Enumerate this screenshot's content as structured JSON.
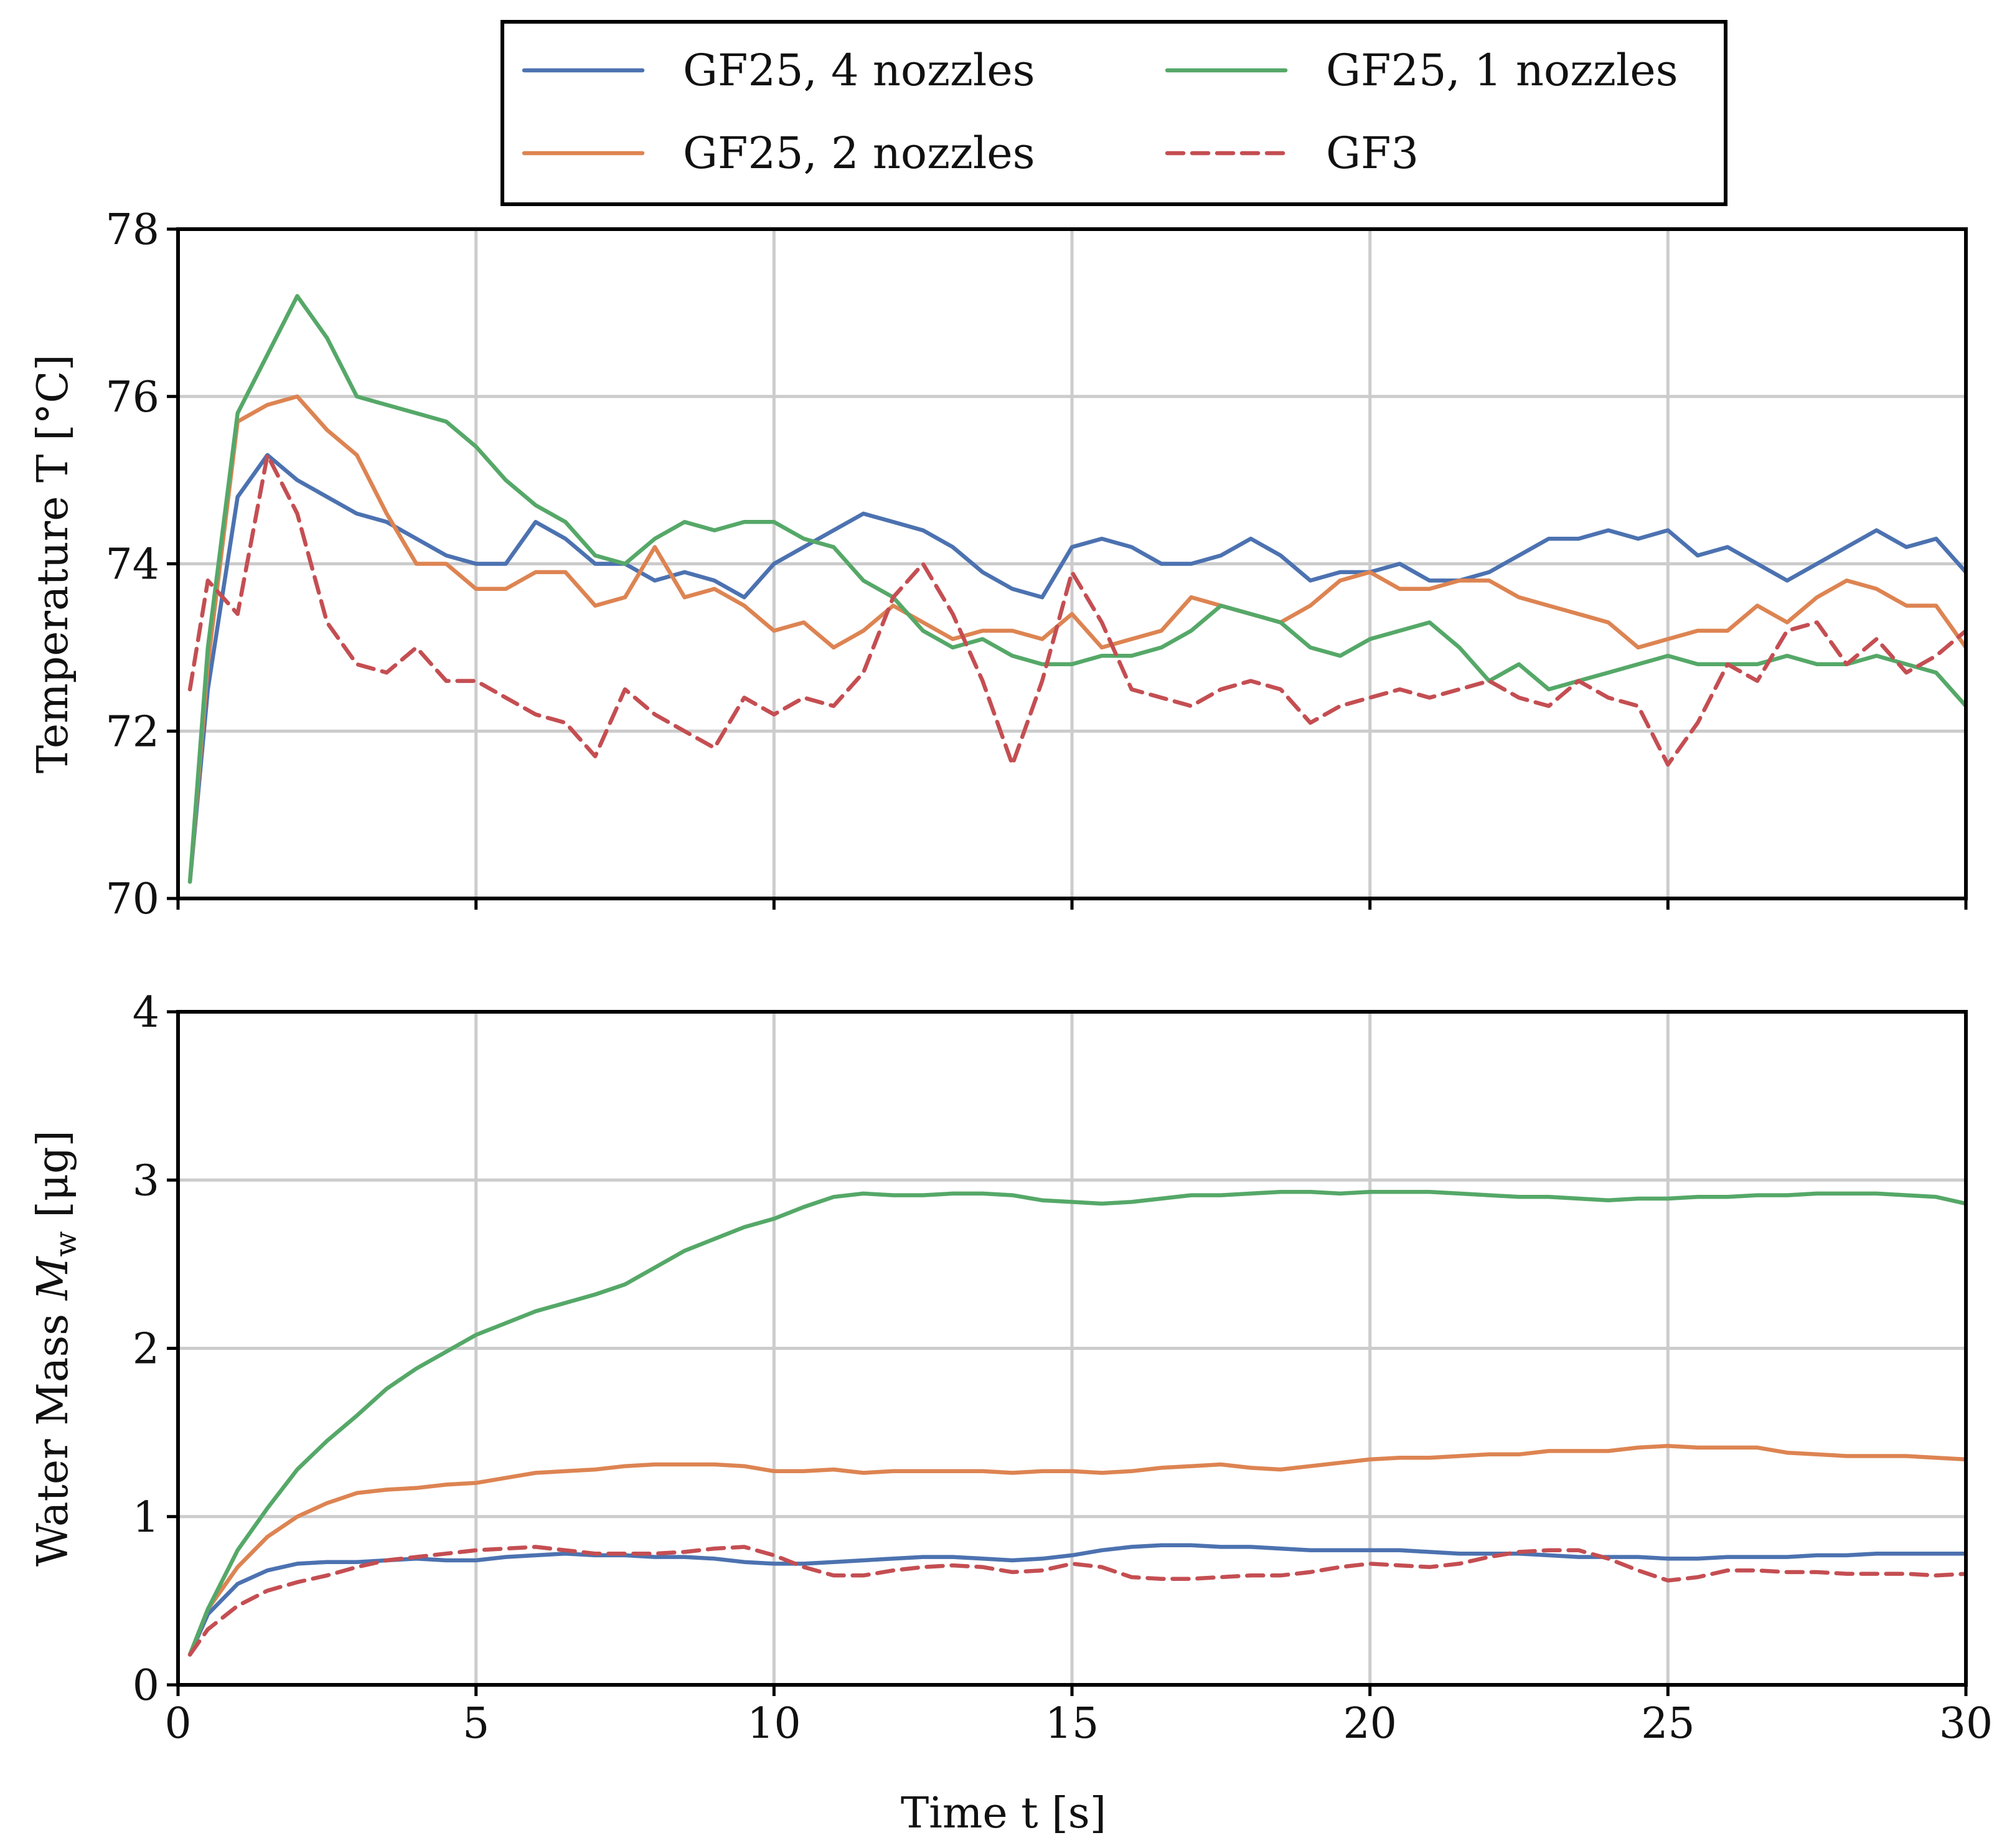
{
  "figure": {
    "xlabel": "Time t [s]"
  },
  "colors": {
    "GF25, 4 nozzles": "#4c72b0",
    "GF25, 2 nozzles": "#dd8452",
    "GF25, 1 nozzles": "#55a868",
    "GF3": "#c44e52"
  },
  "legend": [
    {
      "label": "GF25, 4 nozzles",
      "style": "solid"
    },
    {
      "label": "GF25, 1 nozzles",
      "style": "solid"
    },
    {
      "label": "GF25, 2 nozzles",
      "style": "solid"
    },
    {
      "label": "GF3",
      "style": "dashed"
    }
  ],
  "chart_data": [
    {
      "type": "line",
      "title": "",
      "xlabel": "",
      "ylabel": "Temperature T [°C]",
      "xlim": [
        0,
        30
      ],
      "ylim": [
        70,
        78
      ],
      "xticks": [
        0,
        5,
        10,
        15,
        20,
        25,
        30
      ],
      "xtick_labels_visible": false,
      "yticks": [
        70,
        72,
        74,
        76,
        78
      ],
      "grid": true,
      "x": [
        0.2,
        0.5,
        1,
        1.5,
        2,
        2.5,
        3,
        3.5,
        4,
        4.5,
        5,
        5.5,
        6,
        6.5,
        7,
        7.5,
        8,
        8.5,
        9,
        9.5,
        10,
        10.5,
        11,
        11.5,
        12,
        12.5,
        13,
        13.5,
        14,
        14.5,
        15,
        15.5,
        16,
        16.5,
        17,
        17.5,
        18,
        18.5,
        19,
        19.5,
        20,
        20.5,
        21,
        21.5,
        22,
        22.5,
        23,
        23.5,
        24,
        24.5,
        25,
        25.5,
        26,
        26.5,
        27,
        27.5,
        28,
        28.5,
        29,
        29.5,
        30
      ],
      "series": [
        {
          "name": "GF25, 4 nozzles",
          "style": "solid",
          "values": [
            70.2,
            72.5,
            74.8,
            75.3,
            75.0,
            74.8,
            74.6,
            74.5,
            74.3,
            74.1,
            74.0,
            74.0,
            74.5,
            74.3,
            74.0,
            74.0,
            73.8,
            73.9,
            73.8,
            73.6,
            74.0,
            74.2,
            74.4,
            74.6,
            74.5,
            74.4,
            74.2,
            73.9,
            73.7,
            73.6,
            74.2,
            74.3,
            74.2,
            74.0,
            74.0,
            74.1,
            74.3,
            74.1,
            73.8,
            73.9,
            73.9,
            74.0,
            73.8,
            73.8,
            73.9,
            74.1,
            74.3,
            74.3,
            74.4,
            74.3,
            74.4,
            74.1,
            74.2,
            74.0,
            73.8,
            74.0,
            74.2,
            74.4,
            74.2,
            74.3,
            73.9
          ]
        },
        {
          "name": "GF25, 2 nozzles",
          "style": "solid",
          "values": [
            70.2,
            72.8,
            75.7,
            75.9,
            76.0,
            75.6,
            75.3,
            74.6,
            74.0,
            74.0,
            73.7,
            73.7,
            73.9,
            73.9,
            73.5,
            73.6,
            74.2,
            73.6,
            73.7,
            73.5,
            73.2,
            73.3,
            73.0,
            73.2,
            73.5,
            73.3,
            73.1,
            73.2,
            73.2,
            73.1,
            73.4,
            73.0,
            73.1,
            73.2,
            73.6,
            73.5,
            73.4,
            73.3,
            73.5,
            73.8,
            73.9,
            73.7,
            73.7,
            73.8,
            73.8,
            73.6,
            73.5,
            73.4,
            73.3,
            73.0,
            73.1,
            73.2,
            73.2,
            73.5,
            73.3,
            73.6,
            73.8,
            73.7,
            73.5,
            73.5,
            73.0
          ]
        },
        {
          "name": "GF25, 1 nozzles",
          "style": "solid",
          "values": [
            70.2,
            73.0,
            75.8,
            76.5,
            77.2,
            76.7,
            76.0,
            75.9,
            75.8,
            75.7,
            75.4,
            75.0,
            74.7,
            74.5,
            74.1,
            74.0,
            74.3,
            74.5,
            74.4,
            74.5,
            74.5,
            74.3,
            74.2,
            73.8,
            73.6,
            73.2,
            73.0,
            73.1,
            72.9,
            72.8,
            72.8,
            72.9,
            72.9,
            73.0,
            73.2,
            73.5,
            73.4,
            73.3,
            73.0,
            72.9,
            73.1,
            73.2,
            73.3,
            73.0,
            72.6,
            72.8,
            72.5,
            72.6,
            72.7,
            72.8,
            72.9,
            72.8,
            72.8,
            72.8,
            72.9,
            72.8,
            72.8,
            72.9,
            72.8,
            72.7,
            72.3
          ]
        },
        {
          "name": "GF3",
          "style": "dashed",
          "values": [
            72.5,
            73.8,
            73.4,
            75.3,
            74.6,
            73.3,
            72.8,
            72.7,
            73.0,
            72.6,
            72.6,
            72.4,
            72.2,
            72.1,
            71.7,
            72.5,
            72.2,
            72.0,
            71.8,
            72.4,
            72.2,
            72.4,
            72.3,
            72.7,
            73.6,
            74.0,
            73.4,
            72.6,
            71.6,
            72.6,
            73.9,
            73.3,
            72.5,
            72.4,
            72.3,
            72.5,
            72.6,
            72.5,
            72.1,
            72.3,
            72.4,
            72.5,
            72.4,
            72.5,
            72.6,
            72.4,
            72.3,
            72.6,
            72.4,
            72.3,
            71.6,
            72.1,
            72.8,
            72.6,
            73.2,
            73.3,
            72.8,
            73.1,
            72.7,
            72.9,
            73.2
          ]
        }
      ]
    },
    {
      "type": "line",
      "title": "",
      "xlabel": "Time t [s]",
      "ylabel": "Water Mass M_w [μg]",
      "ylabel_parts": {
        "prefix": "Water Mass ",
        "symbol": "M",
        "subscript": "w",
        "suffix": " [μg]"
      },
      "xlim": [
        0,
        30
      ],
      "ylim": [
        0,
        4
      ],
      "xticks": [
        0,
        5,
        10,
        15,
        20,
        25,
        30
      ],
      "yticks": [
        0,
        1,
        2,
        3,
        4
      ],
      "grid": true,
      "x": [
        0.2,
        0.5,
        1,
        1.5,
        2,
        2.5,
        3,
        3.5,
        4,
        4.5,
        5,
        5.5,
        6,
        6.5,
        7,
        7.5,
        8,
        8.5,
        9,
        9.5,
        10,
        10.5,
        11,
        11.5,
        12,
        12.5,
        13,
        13.5,
        14,
        14.5,
        15,
        15.5,
        16,
        16.5,
        17,
        17.5,
        18,
        18.5,
        19,
        19.5,
        20,
        20.5,
        21,
        21.5,
        22,
        22.5,
        23,
        23.5,
        24,
        24.5,
        25,
        25.5,
        26,
        26.5,
        27,
        27.5,
        28,
        28.5,
        29,
        29.5,
        30
      ],
      "series": [
        {
          "name": "GF25, 4 nozzles",
          "style": "solid",
          "values": [
            0.18,
            0.42,
            0.6,
            0.68,
            0.72,
            0.73,
            0.73,
            0.74,
            0.75,
            0.74,
            0.74,
            0.76,
            0.77,
            0.78,
            0.77,
            0.77,
            0.76,
            0.76,
            0.75,
            0.73,
            0.72,
            0.72,
            0.73,
            0.74,
            0.75,
            0.76,
            0.76,
            0.75,
            0.74,
            0.75,
            0.77,
            0.8,
            0.82,
            0.83,
            0.83,
            0.82,
            0.82,
            0.81,
            0.8,
            0.8,
            0.8,
            0.8,
            0.79,
            0.78,
            0.78,
            0.78,
            0.77,
            0.76,
            0.76,
            0.76,
            0.75,
            0.75,
            0.76,
            0.76,
            0.76,
            0.77,
            0.77,
            0.78,
            0.78,
            0.78,
            0.78
          ]
        },
        {
          "name": "GF25, 2 nozzles",
          "style": "solid",
          "values": [
            0.18,
            0.45,
            0.7,
            0.88,
            1.0,
            1.08,
            1.14,
            1.16,
            1.17,
            1.19,
            1.2,
            1.23,
            1.26,
            1.27,
            1.28,
            1.3,
            1.31,
            1.31,
            1.31,
            1.3,
            1.27,
            1.27,
            1.28,
            1.26,
            1.27,
            1.27,
            1.27,
            1.27,
            1.26,
            1.27,
            1.27,
            1.26,
            1.27,
            1.29,
            1.3,
            1.31,
            1.29,
            1.28,
            1.3,
            1.32,
            1.34,
            1.35,
            1.35,
            1.36,
            1.37,
            1.37,
            1.39,
            1.39,
            1.39,
            1.41,
            1.42,
            1.41,
            1.41,
            1.41,
            1.38,
            1.37,
            1.36,
            1.36,
            1.36,
            1.35,
            1.34
          ]
        },
        {
          "name": "GF25, 1 nozzles",
          "style": "solid",
          "values": [
            0.18,
            0.45,
            0.8,
            1.05,
            1.28,
            1.45,
            1.6,
            1.76,
            1.88,
            1.98,
            2.08,
            2.15,
            2.22,
            2.27,
            2.32,
            2.38,
            2.48,
            2.58,
            2.65,
            2.72,
            2.77,
            2.84,
            2.9,
            2.92,
            2.91,
            2.91,
            2.92,
            2.92,
            2.91,
            2.88,
            2.87,
            2.86,
            2.87,
            2.89,
            2.91,
            2.91,
            2.92,
            2.93,
            2.93,
            2.92,
            2.93,
            2.93,
            2.93,
            2.92,
            2.91,
            2.9,
            2.9,
            2.89,
            2.88,
            2.89,
            2.89,
            2.9,
            2.9,
            2.91,
            2.91,
            2.92,
            2.92,
            2.92,
            2.91,
            2.9,
            2.86
          ]
        },
        {
          "name": "GF3",
          "style": "dashed",
          "values": [
            0.18,
            0.33,
            0.47,
            0.56,
            0.61,
            0.65,
            0.7,
            0.74,
            0.76,
            0.78,
            0.8,
            0.81,
            0.82,
            0.8,
            0.78,
            0.78,
            0.78,
            0.79,
            0.81,
            0.82,
            0.77,
            0.7,
            0.65,
            0.65,
            0.68,
            0.7,
            0.71,
            0.7,
            0.67,
            0.68,
            0.72,
            0.7,
            0.64,
            0.63,
            0.63,
            0.64,
            0.65,
            0.65,
            0.67,
            0.7,
            0.72,
            0.71,
            0.7,
            0.72,
            0.76,
            0.79,
            0.8,
            0.8,
            0.75,
            0.68,
            0.62,
            0.64,
            0.68,
            0.68,
            0.67,
            0.67,
            0.66,
            0.66,
            0.66,
            0.65,
            0.66
          ]
        }
      ]
    }
  ]
}
